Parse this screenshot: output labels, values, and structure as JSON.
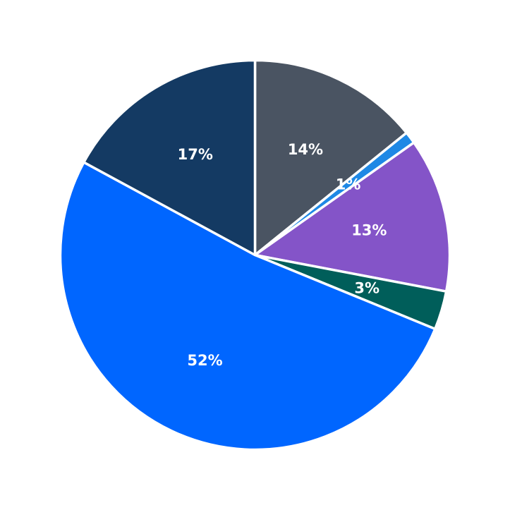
{
  "chart_data": {
    "type": "pie",
    "title": "",
    "start_angle_deg": 90,
    "direction": "clockwise",
    "slices": [
      {
        "label": "14%",
        "value": 14.2,
        "color": "#4a5462"
      },
      {
        "label": "1%",
        "value": 1.0,
        "color": "#1e88e5"
      },
      {
        "label": "13%",
        "value": 12.8,
        "color": "#8454c8"
      },
      {
        "label": "3%",
        "value": 3.2,
        "color": "#005e5a"
      },
      {
        "label": "52%",
        "value": 51.7,
        "color": "#0066ff"
      },
      {
        "label": "17%",
        "value": 17.1,
        "color": "#143a63"
      }
    ]
  }
}
